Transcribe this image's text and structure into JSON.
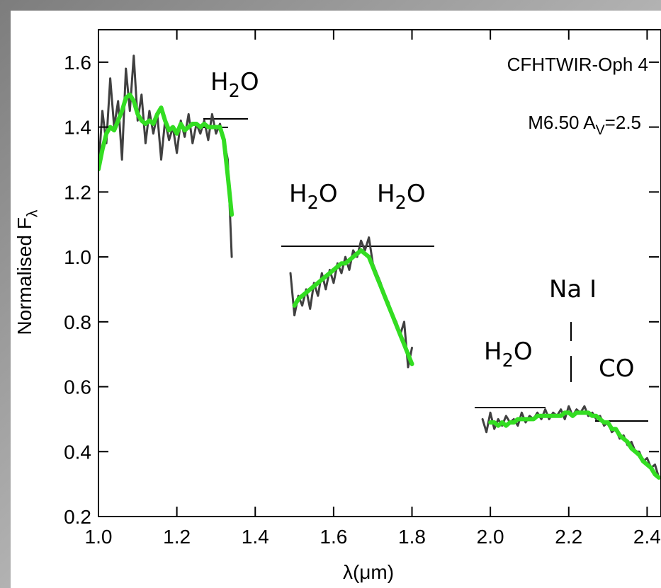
{
  "chart_data": {
    "type": "line",
    "title": [
      {
        "text": "CFHTWIR-Oph 4"
      }
    ],
    "subtitle": [
      {
        "text": "M6.50  A"
      },
      {
        "text": "V",
        "sub": true
      },
      {
        "text": "=2.5"
      }
    ],
    "xlabel": [
      {
        "text": "λ(μm)"
      }
    ],
    "ylabel": [
      {
        "text": "Normalised F"
      },
      {
        "text": "λ",
        "sub": true
      }
    ],
    "annotations": [
      [
        {
          "text": "H"
        },
        {
          "text": "2",
          "sub": true
        },
        {
          "text": "O"
        }
      ],
      [
        {
          "text": "H"
        },
        {
          "text": "2",
          "sub": true
        },
        {
          "text": "O"
        }
      ],
      [
        {
          "text": "H"
        },
        {
          "text": "2",
          "sub": true
        },
        {
          "text": "O"
        }
      ],
      [
        {
          "text": "Na I"
        }
      ],
      [
        {
          "text": "H"
        },
        {
          "text": "2",
          "sub": true
        },
        {
          "text": "O"
        }
      ],
      [
        {
          "text": "CO"
        }
      ]
    ],
    "xlim": [
      1.0,
      2.43
    ],
    "ylim": [
      0.2,
      1.7
    ],
    "xticks": [
      {
        "value": 1,
        "label": "1.0"
      },
      {
        "value": 1.2,
        "label": "1.2"
      },
      {
        "value": 1.4,
        "label": "1.4"
      },
      {
        "value": 1.6,
        "label": "1.6"
      },
      {
        "value": 1.8,
        "label": "1.8"
      },
      {
        "value": 2,
        "label": "2.0"
      },
      {
        "value": 2.2,
        "label": "2.2"
      },
      {
        "value": 2.4,
        "label": "2.4"
      }
    ],
    "yticks": [
      0.2,
      0.4,
      0.6,
      0.8,
      {
        "value": 1,
        "label": "1.0"
      },
      1.2,
      1.4,
      1.6
    ],
    "x": [
      1.0,
      1.01,
      1.02,
      1.03,
      1.04,
      1.05,
      1.06,
      1.07,
      1.08,
      1.09,
      1.1,
      1.11,
      1.12,
      1.13,
      1.14,
      1.15,
      1.16,
      1.17,
      1.18,
      1.19,
      1.2,
      1.21,
      1.22,
      1.23,
      1.24,
      1.25,
      1.26,
      1.27,
      1.28,
      1.29,
      1.3,
      1.31,
      1.32,
      1.33,
      1.34,
      1.41,
      1.49,
      1.5,
      1.51,
      1.52,
      1.53,
      1.54,
      1.55,
      1.56,
      1.57,
      1.58,
      1.59,
      1.6,
      1.61,
      1.62,
      1.63,
      1.64,
      1.65,
      1.66,
      1.67,
      1.68,
      1.69,
      1.7,
      1.71,
      1.72,
      1.73,
      1.74,
      1.75,
      1.76,
      1.77,
      1.78,
      1.79,
      1.8,
      1.89,
      1.98,
      1.99,
      2.0,
      2.01,
      2.02,
      2.03,
      2.04,
      2.05,
      2.06,
      2.07,
      2.08,
      2.09,
      2.1,
      2.11,
      2.12,
      2.13,
      2.14,
      2.15,
      2.16,
      2.17,
      2.18,
      2.19,
      2.2,
      2.21,
      2.22,
      2.23,
      2.24,
      2.25,
      2.26,
      2.27,
      2.28,
      2.29,
      2.3,
      2.31,
      2.32,
      2.33,
      2.34,
      2.35,
      2.36,
      2.37,
      2.38,
      2.39,
      2.4,
      2.41,
      2.42,
      2.43
    ],
    "series": [
      {
        "color": "#404040",
        "values": [
          1.27,
          1.45,
          1.35,
          1.55,
          1.4,
          1.48,
          1.3,
          1.58,
          1.45,
          1.62,
          1.42,
          1.5,
          1.35,
          1.45,
          1.38,
          1.44,
          1.3,
          1.42,
          1.36,
          1.4,
          1.32,
          1.42,
          1.37,
          1.44,
          1.35,
          1.41,
          1.38,
          1.42,
          1.36,
          1.44,
          1.38,
          1.41,
          1.36,
          1.3,
          1.0,
          null,
          0.95,
          0.82,
          0.88,
          0.85,
          0.9,
          0.84,
          0.92,
          0.88,
          0.95,
          0.9,
          0.96,
          0.92,
          0.98,
          0.95,
          1.0,
          0.96,
          1.02,
          1.0,
          1.05,
          1.02,
          1.06,
          0.98,
          0.95,
          0.92,
          0.88,
          0.86,
          0.82,
          0.8,
          0.76,
          0.8,
          0.66,
          0.72,
          null,
          0.5,
          0.46,
          0.52,
          0.47,
          0.5,
          0.48,
          0.51,
          0.49,
          0.5,
          0.48,
          0.52,
          0.49,
          0.51,
          0.5,
          0.52,
          0.5,
          0.53,
          0.5,
          0.52,
          0.51,
          0.53,
          0.5,
          0.54,
          0.51,
          0.53,
          0.52,
          0.54,
          0.51,
          0.52,
          0.5,
          0.51,
          0.48,
          0.49,
          0.46,
          0.47,
          0.44,
          0.45,
          0.42,
          0.43,
          0.4,
          0.4,
          0.37,
          0.38,
          0.35,
          0.36,
          0.32
        ]
      },
      {
        "color": "#33dd22",
        "values": [
          1.27,
          1.33,
          1.38,
          1.4,
          1.39,
          1.42,
          1.45,
          1.49,
          1.5,
          1.48,
          1.44,
          1.42,
          1.41,
          1.42,
          1.41,
          1.44,
          1.46,
          1.42,
          1.39,
          1.4,
          1.38,
          1.41,
          1.39,
          1.4,
          1.41,
          1.41,
          1.4,
          1.41,
          1.4,
          1.4,
          1.4,
          1.4,
          1.36,
          1.25,
          1.13,
          null,
          null,
          0.85,
          0.87,
          0.88,
          0.89,
          0.9,
          0.91,
          0.92,
          0.93,
          0.94,
          0.95,
          0.96,
          0.97,
          0.98,
          0.98,
          0.99,
          1.0,
          1.01,
          1.02,
          1.01,
          1.0,
          0.97,
          0.94,
          0.91,
          0.88,
          0.85,
          0.82,
          0.79,
          0.76,
          0.73,
          0.7,
          0.67,
          null,
          null,
          null,
          0.49,
          0.49,
          0.48,
          0.49,
          0.48,
          0.49,
          0.49,
          0.5,
          0.5,
          0.5,
          0.5,
          0.5,
          0.51,
          0.51,
          0.51,
          0.51,
          0.51,
          0.51,
          0.51,
          0.52,
          0.52,
          0.51,
          0.52,
          0.52,
          0.52,
          0.52,
          0.51,
          0.51,
          0.5,
          0.49,
          0.49,
          0.47,
          0.47,
          0.45,
          0.44,
          0.43,
          0.41,
          0.4,
          0.39,
          0.37,
          0.36,
          0.35,
          0.33,
          0.32
        ]
      }
    ]
  }
}
